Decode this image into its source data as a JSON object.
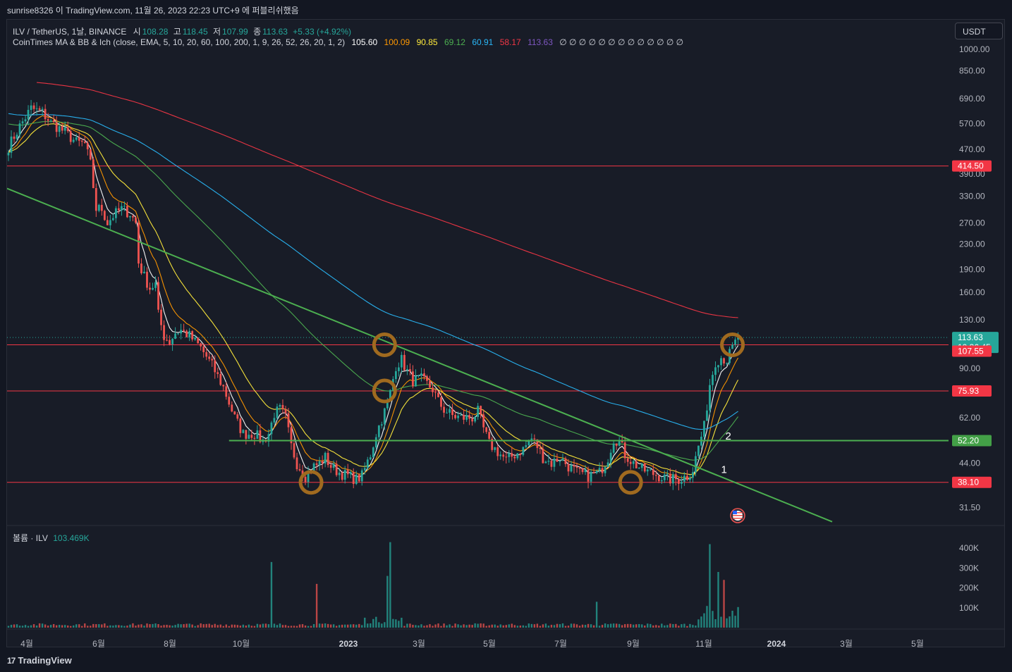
{
  "header": {
    "caption": "sunrise8326 이 TradingView.com, 11월 26, 2023 22:23 UTC+9 에 퍼블리쉬했음"
  },
  "legend": {
    "symbol": "ILV / TetherUS, 1날, BINANCE",
    "open_label": "시",
    "open": "108.28",
    "high_label": "고",
    "high": "118.45",
    "low_label": "저",
    "low": "107.99",
    "close_label": "종",
    "close": "113.63",
    "change": "+5.33 (+4.92%)",
    "indicator": "CoinTimes MA & BB & Ich (close, EMA, 5, 10, 20, 60, 100, 200, 1, 9, 26, 52, 26, 20, 1, 2)",
    "ma_values": [
      "105.60",
      "100.09",
      "90.85",
      "69.12",
      "60.91",
      "58.17",
      "113.63"
    ],
    "empty_values": "∅ ∅ ∅ ∅ ∅ ∅ ∅ ∅ ∅ ∅ ∅ ∅ ∅"
  },
  "volume_legend": {
    "label": "볼륨 · ILV",
    "value": "103.469K"
  },
  "currency_button": "USDT",
  "footer": {
    "logo": "17",
    "brand": "TradingView"
  },
  "colors": {
    "background": "#181c27",
    "up": "#26a69a",
    "down": "#ef5350",
    "ma5": "#ffffff",
    "ma10": "#ff9800",
    "ma20": "#ffeb3b",
    "ma60": "#4caf50",
    "ma100": "#29b6f6",
    "ma200": "#f23645",
    "ma_last": "#7e57c2",
    "hline": "#f23645",
    "trendline": "#4caf50",
    "circle": "#a06a1f"
  },
  "chart_data": {
    "type": "candlestick",
    "symbol": "ILV/USDT",
    "scale": "log",
    "ylim": [
      28,
      1100
    ],
    "price_ticks": [
      "1000.00",
      "850.00",
      "690.00",
      "570.00",
      "470.00",
      "390.00",
      "330.00",
      "270.00",
      "230.00",
      "190.00",
      "160.00",
      "130.00",
      "90.00",
      "62.00",
      "44.00",
      "31.50"
    ],
    "x_labels": [
      "4월",
      "6월",
      "8월",
      "10월",
      "2023",
      "3월",
      "5월",
      "7월",
      "9월",
      "11월",
      "2024",
      "3월",
      "5월"
    ],
    "horizontal_lines": [
      {
        "value": 414.5,
        "label": "414.50"
      },
      {
        "value": 107.55,
        "label": "107.55"
      },
      {
        "value": 75.93,
        "label": "75.93"
      },
      {
        "value": 38.1,
        "label": "38.10"
      }
    ],
    "support_line": {
      "value": 52.2,
      "label": "52.20"
    },
    "last_price": {
      "value": 113.63,
      "label": "113.63",
      "countdown": "10:36:45"
    },
    "price_path": [
      {
        "x": 0,
        "p": 480
      },
      {
        "x": 4,
        "p": 560
      },
      {
        "x": 8,
        "p": 640
      },
      {
        "x": 12,
        "p": 620
      },
      {
        "x": 15,
        "p": 575
      },
      {
        "x": 20,
        "p": 535
      },
      {
        "x": 24,
        "p": 495
      },
      {
        "x": 27,
        "p": 490
      },
      {
        "x": 29,
        "p": 420
      },
      {
        "x": 31,
        "p": 300
      },
      {
        "x": 33,
        "p": 300
      },
      {
        "x": 35,
        "p": 270
      },
      {
        "x": 37,
        "p": 285
      },
      {
        "x": 40,
        "p": 300
      },
      {
        "x": 43,
        "p": 290
      },
      {
        "x": 45,
        "p": 270
      },
      {
        "x": 46,
        "p": 200
      },
      {
        "x": 48,
        "p": 180
      },
      {
        "x": 50,
        "p": 165
      },
      {
        "x": 52,
        "p": 170
      },
      {
        "x": 53,
        "p": 135
      },
      {
        "x": 55,
        "p": 115
      },
      {
        "x": 57,
        "p": 110
      },
      {
        "x": 59,
        "p": 118
      },
      {
        "x": 61,
        "p": 120
      },
      {
        "x": 64,
        "p": 115
      },
      {
        "x": 68,
        "p": 105
      },
      {
        "x": 72,
        "p": 92
      },
      {
        "x": 76,
        "p": 78
      },
      {
        "x": 80,
        "p": 62
      },
      {
        "x": 83,
        "p": 55
      },
      {
        "x": 87,
        "p": 55
      },
      {
        "x": 90,
        "p": 52
      },
      {
        "x": 92,
        "p": 55
      },
      {
        "x": 94,
        "p": 64
      },
      {
        "x": 96,
        "p": 66
      },
      {
        "x": 98,
        "p": 62
      },
      {
        "x": 100,
        "p": 50
      },
      {
        "x": 102,
        "p": 44
      },
      {
        "x": 105,
        "p": 40
      },
      {
        "x": 108,
        "p": 43
      },
      {
        "x": 110,
        "p": 44
      },
      {
        "x": 112,
        "p": 46
      },
      {
        "x": 114,
        "p": 43
      },
      {
        "x": 117,
        "p": 41
      },
      {
        "x": 120,
        "p": 40
      },
      {
        "x": 123,
        "p": 39
      },
      {
        "x": 125,
        "p": 40
      },
      {
        "x": 128,
        "p": 47
      },
      {
        "x": 130,
        "p": 55
      },
      {
        "x": 133,
        "p": 65
      },
      {
        "x": 135,
        "p": 75
      },
      {
        "x": 137,
        "p": 92
      },
      {
        "x": 139,
        "p": 96
      },
      {
        "x": 141,
        "p": 88
      },
      {
        "x": 143,
        "p": 82
      },
      {
        "x": 146,
        "p": 83
      },
      {
        "x": 148,
        "p": 80
      },
      {
        "x": 150,
        "p": 77
      },
      {
        "x": 152,
        "p": 70
      },
      {
        "x": 154,
        "p": 66
      },
      {
        "x": 157,
        "p": 63
      },
      {
        "x": 160,
        "p": 62
      },
      {
        "x": 164,
        "p": 62
      },
      {
        "x": 166,
        "p": 65
      },
      {
        "x": 168,
        "p": 57
      },
      {
        "x": 170,
        "p": 51
      },
      {
        "x": 173,
        "p": 48
      },
      {
        "x": 176,
        "p": 45
      },
      {
        "x": 179,
        "p": 47
      },
      {
        "x": 182,
        "p": 49
      },
      {
        "x": 185,
        "p": 53
      },
      {
        "x": 187,
        "p": 50
      },
      {
        "x": 189,
        "p": 46
      },
      {
        "x": 192,
        "p": 44
      },
      {
        "x": 195,
        "p": 46
      },
      {
        "x": 198,
        "p": 43
      },
      {
        "x": 201,
        "p": 41
      },
      {
        "x": 205,
        "p": 40
      },
      {
        "x": 209,
        "p": 41
      },
      {
        "x": 212,
        "p": 46
      },
      {
        "x": 214,
        "p": 53
      },
      {
        "x": 216,
        "p": 52
      },
      {
        "x": 218,
        "p": 47
      },
      {
        "x": 221,
        "p": 44
      },
      {
        "x": 224,
        "p": 42
      },
      {
        "x": 227,
        "p": 41
      },
      {
        "x": 230,
        "p": 40
      },
      {
        "x": 233,
        "p": 39
      },
      {
        "x": 237,
        "p": 39
      },
      {
        "x": 240,
        "p": 40
      },
      {
        "x": 242,
        "p": 42
      },
      {
        "x": 244,
        "p": 50
      },
      {
        "x": 246,
        "p": 58
      },
      {
        "x": 248,
        "p": 80
      },
      {
        "x": 250,
        "p": 95
      },
      {
        "x": 252,
        "p": 98
      },
      {
        "x": 254,
        "p": 96
      },
      {
        "x": 256,
        "p": 105
      },
      {
        "x": 258,
        "p": 113.63
      }
    ],
    "markers": [
      {
        "label": "1",
        "p": 42
      },
      {
        "label": "2",
        "p": 54
      }
    ],
    "volume": {
      "ticks": [
        "400K",
        "300K",
        "200K",
        "100K"
      ],
      "ylim": [
        0,
        450000
      ],
      "last": 103469
    }
  }
}
